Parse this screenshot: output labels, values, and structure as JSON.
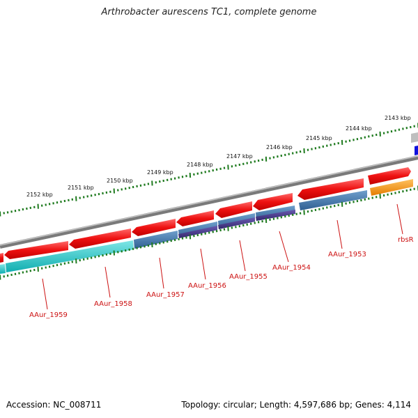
{
  "title": "Arthrobacter aurescens TC1, complete genome",
  "accession": "Accession: NC_008711",
  "stats": "Topology: circular; Length: 4,597,686 bp; Genes: 4,114",
  "kbp_ticks": [
    "2143 kbp",
    "2144 kbp",
    "2145 kbp",
    "2146 kbp",
    "2147 kbp",
    "2148 kbp",
    "2149 kbp",
    "2150 kbp",
    "2151 kbp",
    "2152 kbp"
  ],
  "gene_labels": [
    "rbsR",
    "AAur_1953",
    "AAur_1954",
    "AAur_1955",
    "AAur_1956",
    "AAur_1957",
    "AAur_1958",
    "AAur_1959"
  ],
  "colors": {
    "cds": "#ee1111",
    "gene": "#3f79ad",
    "gene_alt": "#4a3a8c",
    "cyan_gene": "#1cc4c4",
    "orange_gene": "#ff9a10",
    "backbone": "#8a8a8a",
    "tick_green": "#1e7a1e",
    "label_red": "#cc1111",
    "blue_block": "#1010dd",
    "grey_block": "#bfbfbf"
  }
}
